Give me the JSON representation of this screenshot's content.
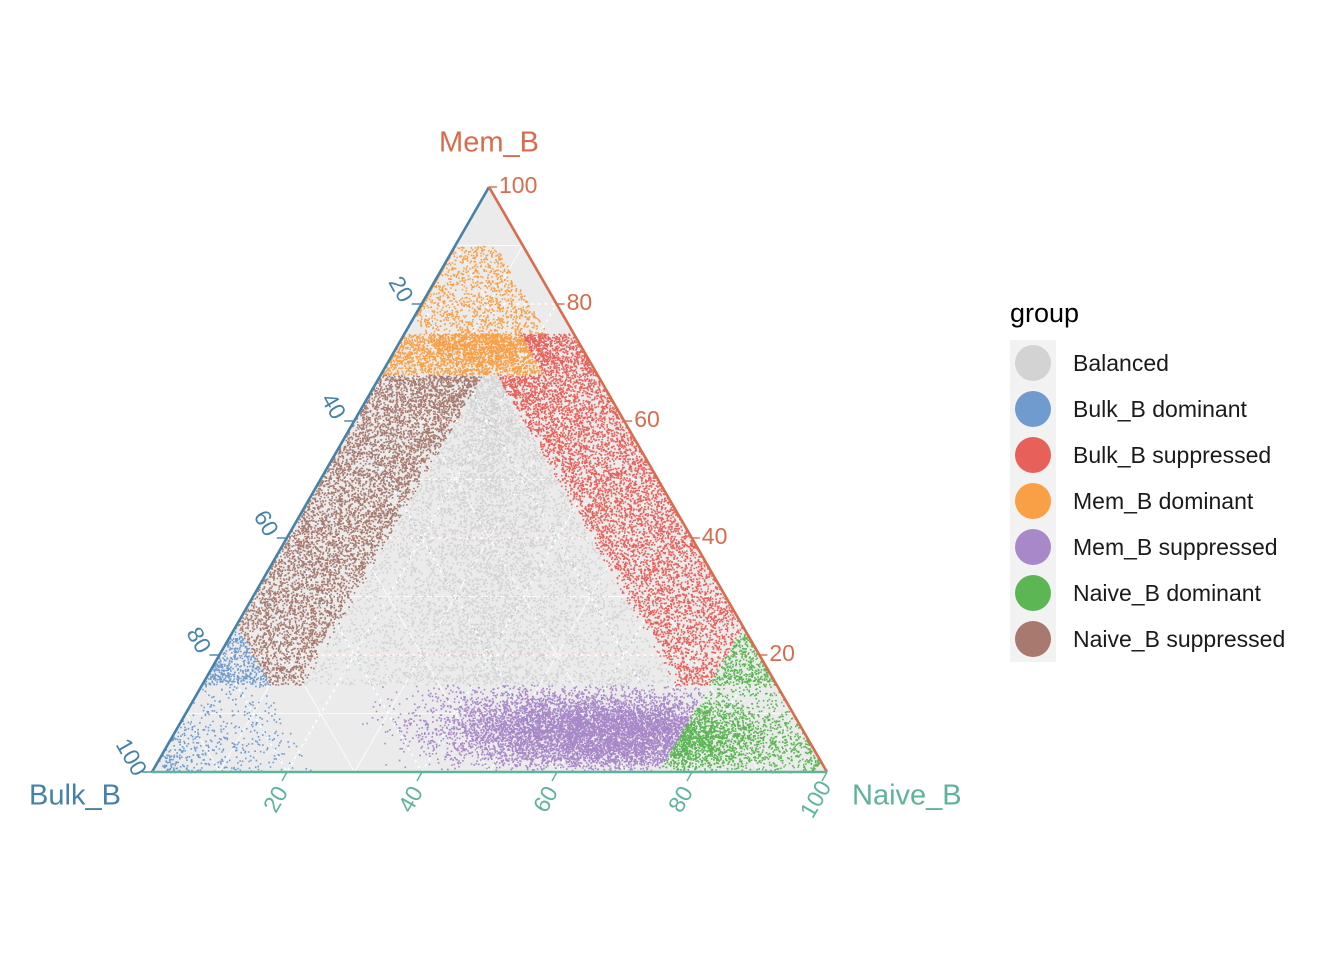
{
  "chart_data": {
    "type": "scatter",
    "subtype": "ternary",
    "axes": {
      "top": {
        "name": "Mem_B",
        "color": "#d96c4d",
        "ticks": [
          "20",
          "40",
          "60",
          "80",
          "100"
        ]
      },
      "left": {
        "name": "Bulk_B",
        "color": "#4682a8",
        "ticks": [
          "20",
          "40",
          "60",
          "80",
          "100"
        ]
      },
      "right": {
        "name": "Naive_B",
        "color": "#5fb39a",
        "ticks": [
          "20",
          "40",
          "60",
          "80",
          "100"
        ]
      }
    },
    "range": [
      0,
      100
    ],
    "grid": true,
    "legend": {
      "title": "group",
      "placement": "right",
      "entries": [
        {
          "label": "Balanced",
          "color": "#d3d3d3"
        },
        {
          "label": "Bulk_B dominant",
          "color": "#6f9bcf"
        },
        {
          "label": "Bulk_B suppressed",
          "color": "#e8605a"
        },
        {
          "label": "Mem_B dominant",
          "color": "#f9a046"
        },
        {
          "label": "Mem_B suppressed",
          "color": "#a988c9"
        },
        {
          "label": "Naive_B dominant",
          "color": "#5bb653"
        },
        {
          "label": "Naive_B suppressed",
          "color": "#a87a6f"
        }
      ]
    },
    "series": [
      {
        "name": "Balanced",
        "color": "#d3d3d3",
        "region": "Bulk_B < 80, Naive_B < 80, Mem_B 15-80 (interior triangle)",
        "approx_points": 30000
      },
      {
        "name": "Bulk_B dominant",
        "color": "#6f9bcf",
        "region": "Bulk_B > 75, Mem_B < 20, Naive_B < 25",
        "approx_points": 500
      },
      {
        "name": "Bulk_B suppressed",
        "color": "#e8605a",
        "region": "Bulk_B < 15, Mem_B 15-75",
        "approx_points": 4500
      },
      {
        "name": "Mem_B dominant",
        "color": "#f9a046",
        "region": "Mem_B 70-90, Bulk_B 5-25, Naive_B 0-25",
        "approx_points": 1800
      },
      {
        "name": "Mem_B suppressed",
        "color": "#a988c9",
        "region": "Mem_B < 15, Bulk_B 20-85, Naive_B 15-75",
        "approx_points": 9000
      },
      {
        "name": "Naive_B dominant",
        "color": "#5bb653",
        "region": "Naive_B > 75, Mem_B < 20",
        "approx_points": 500
      },
      {
        "name": "Naive_B suppressed",
        "color": "#a87a6f",
        "region": "Naive_B < 15, Mem_B 15-75",
        "approx_points": 5000
      }
    ]
  }
}
